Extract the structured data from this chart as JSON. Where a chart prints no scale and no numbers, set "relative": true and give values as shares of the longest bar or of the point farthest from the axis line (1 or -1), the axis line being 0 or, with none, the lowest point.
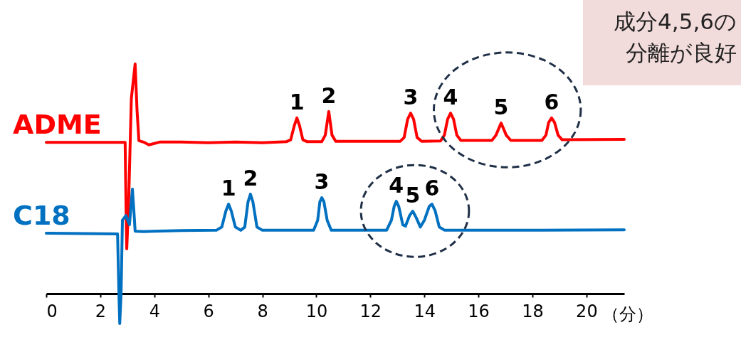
{
  "chart_data": {
    "type": "line",
    "relative": true,
    "xlim": [
      0,
      21.4
    ],
    "xticks": [
      0,
      2,
      4,
      6,
      8,
      10,
      12,
      14,
      16,
      18,
      20
    ],
    "xlabel": "（分）",
    "series": [
      {
        "name": "ADME",
        "color": "#ff0000",
        "x": [
          0,
          2.92,
          2.95,
          2.98,
          3.05,
          3.15,
          3.29,
          3.36,
          3.43,
          3.6,
          3.8,
          4.2,
          5,
          6,
          7,
          8,
          8.9,
          9.05,
          9.18,
          9.28,
          9.38,
          9.5,
          9.65,
          10.2,
          10.33,
          10.46,
          10.58,
          10.72,
          13.1,
          13.25,
          13.38,
          13.49,
          13.6,
          13.73,
          13.9,
          14.6,
          14.74,
          14.86,
          14.97,
          15.08,
          15.2,
          15.35,
          16.5,
          16.65,
          16.84,
          17.03,
          17.2,
          18.35,
          18.5,
          18.6,
          18.71,
          18.82,
          18.95,
          19.1,
          21.4
        ],
        "values": [
          0.659,
          0.659,
          0.4,
          0.195,
          0.4,
          0.85,
          1.0,
          0.8,
          0.666,
          0.66,
          0.648,
          0.66,
          0.66,
          0.657,
          0.66,
          0.657,
          0.662,
          0.67,
          0.73,
          0.765,
          0.73,
          0.67,
          0.662,
          0.662,
          0.69,
          0.793,
          0.69,
          0.663,
          0.663,
          0.68,
          0.76,
          0.786,
          0.76,
          0.68,
          0.663,
          0.665,
          0.69,
          0.76,
          0.786,
          0.76,
          0.69,
          0.667,
          0.667,
          0.69,
          0.743,
          0.69,
          0.667,
          0.667,
          0.69,
          0.745,
          0.765,
          0.745,
          0.69,
          0.67,
          0.672
        ]
      },
      {
        "name": "C18",
        "color": "#0070c0",
        "x": [
          0,
          2.64,
          2.69,
          2.72,
          2.77,
          2.82,
          2.95,
          3.08,
          3.19,
          3.26,
          3.29,
          3.6,
          4,
          5,
          6.3,
          6.5,
          6.65,
          6.75,
          6.85,
          7,
          7.2,
          7.35,
          7.47,
          7.56,
          7.65,
          7.8,
          8,
          9.9,
          10.05,
          10.13,
          10.2,
          10.28,
          10.4,
          10.55,
          12.6,
          12.78,
          12.88,
          12.96,
          13.05,
          13.2,
          13.3,
          13.45,
          13.57,
          13.7,
          13.85,
          14.0,
          14.18,
          14.28,
          14.4,
          14.55,
          14.75,
          18,
          21.4
        ],
        "values": [
          0.263,
          0.26,
          0.0,
          -0.13,
          0.0,
          0.32,
          0.34,
          0.3,
          0.455,
          0.33,
          0.272,
          0.27,
          0.272,
          0.275,
          0.276,
          0.29,
          0.36,
          0.39,
          0.36,
          0.29,
          0.276,
          0.29,
          0.4,
          0.433,
          0.4,
          0.29,
          0.276,
          0.276,
          0.32,
          0.4,
          0.418,
          0.4,
          0.32,
          0.276,
          0.276,
          0.32,
          0.38,
          0.402,
          0.38,
          0.3,
          0.294,
          0.34,
          0.359,
          0.33,
          0.29,
          0.32,
          0.38,
          0.39,
          0.36,
          0.29,
          0.276,
          0.276,
          0.278
        ]
      }
    ],
    "annotations": [
      {
        "text": "1",
        "x": 9.28,
        "y": 0.765
      },
      {
        "text": "2",
        "x": 10.46,
        "y": 0.793
      },
      {
        "text": "3",
        "x": 13.49,
        "y": 0.786
      },
      {
        "text": "4",
        "x": 14.97,
        "y": 0.786
      },
      {
        "text": "5",
        "x": 16.84,
        "y": 0.743
      },
      {
        "text": "6",
        "x": 18.71,
        "y": 0.765
      },
      {
        "text": "1",
        "x": 6.75,
        "y": 0.39
      },
      {
        "text": "2",
        "x": 7.56,
        "y": 0.433
      },
      {
        "text": "3",
        "x": 10.2,
        "y": 0.418
      },
      {
        "text": "4",
        "x": 12.96,
        "y": 0.402
      },
      {
        "text": "5",
        "x": 13.57,
        "y": 0.359
      },
      {
        "text": "6",
        "x": 14.28,
        "y": 0.39
      },
      "成分4,5,6の分離が良好"
    ]
  }
}
